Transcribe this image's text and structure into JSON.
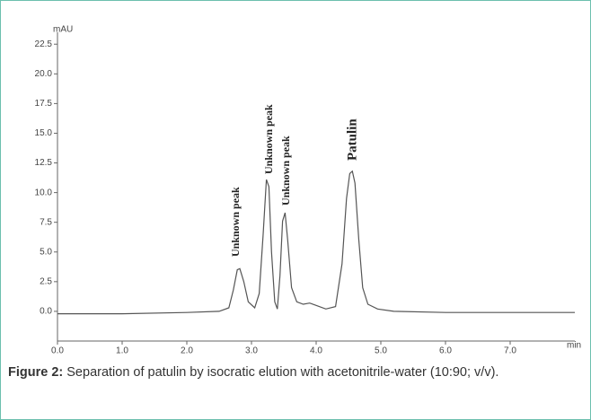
{
  "chart_data": {
    "type": "line",
    "y_label": "mAU",
    "x_label": "min",
    "x": [
      0,
      1,
      2,
      2.5,
      2.65,
      2.72,
      2.78,
      2.82,
      2.88,
      2.95,
      3.05,
      3.12,
      3.18,
      3.23,
      3.27,
      3.31,
      3.36,
      3.4,
      3.44,
      3.48,
      3.52,
      3.56,
      3.62,
      3.7,
      3.8,
      3.9,
      4.0,
      4.15,
      4.3,
      4.4,
      4.47,
      4.52,
      4.56,
      4.6,
      4.66,
      4.72,
      4.8,
      4.95,
      5.2,
      6,
      7,
      8
    ],
    "series": [
      {
        "color": "#555555",
        "values": [
          -0.2,
          -0.2,
          -0.1,
          0,
          0.3,
          1.8,
          3.5,
          3.6,
          2.5,
          0.8,
          0.3,
          1.5,
          6.5,
          11.1,
          10.5,
          5.0,
          0.8,
          0.2,
          3.0,
          7.6,
          8.3,
          6.0,
          2.0,
          0.8,
          0.6,
          0.7,
          0.5,
          0.2,
          0.4,
          4.0,
          9.5,
          11.6,
          11.8,
          10.8,
          6.0,
          2.0,
          0.6,
          0.2,
          0.0,
          -0.1,
          -0.1,
          -0.1
        ]
      }
    ],
    "xlim": [
      0,
      8
    ],
    "ylim": [
      -2.5,
      23.5
    ],
    "xticks": [
      {
        "value": 0,
        "label": "0.0"
      },
      {
        "value": 1,
        "label": "1.0"
      },
      {
        "value": 2,
        "label": "2.0"
      },
      {
        "value": 3,
        "label": "3.0"
      },
      {
        "value": 4,
        "label": "4.0"
      },
      {
        "value": 5,
        "label": "5.0"
      },
      {
        "value": 6,
        "label": "6.0"
      },
      {
        "value": 7,
        "label": "7.0"
      }
    ],
    "yticks": [
      {
        "value": 0,
        "label": "0.0"
      },
      {
        "value": 2.5,
        "label": "2.5"
      },
      {
        "value": 5,
        "label": "5.0"
      },
      {
        "value": 7.5,
        "label": "7.5"
      },
      {
        "value": 10,
        "label": "10.0"
      },
      {
        "value": 12.5,
        "label": "12.5"
      },
      {
        "value": 15,
        "label": "15.0"
      },
      {
        "value": 17.5,
        "label": "17.5"
      },
      {
        "value": 20,
        "label": "20.0"
      },
      {
        "value": 22.5,
        "label": "22.5"
      }
    ],
    "annotations": [
      "Unknown peak",
      "Unknown peak",
      "Unknown peak",
      "Patulin"
    ],
    "caption": {
      "label": "Figure 2:",
      "text": "Separation of patulin by isocratic elution with acetonitrile-water (10:90; v/v)."
    }
  }
}
